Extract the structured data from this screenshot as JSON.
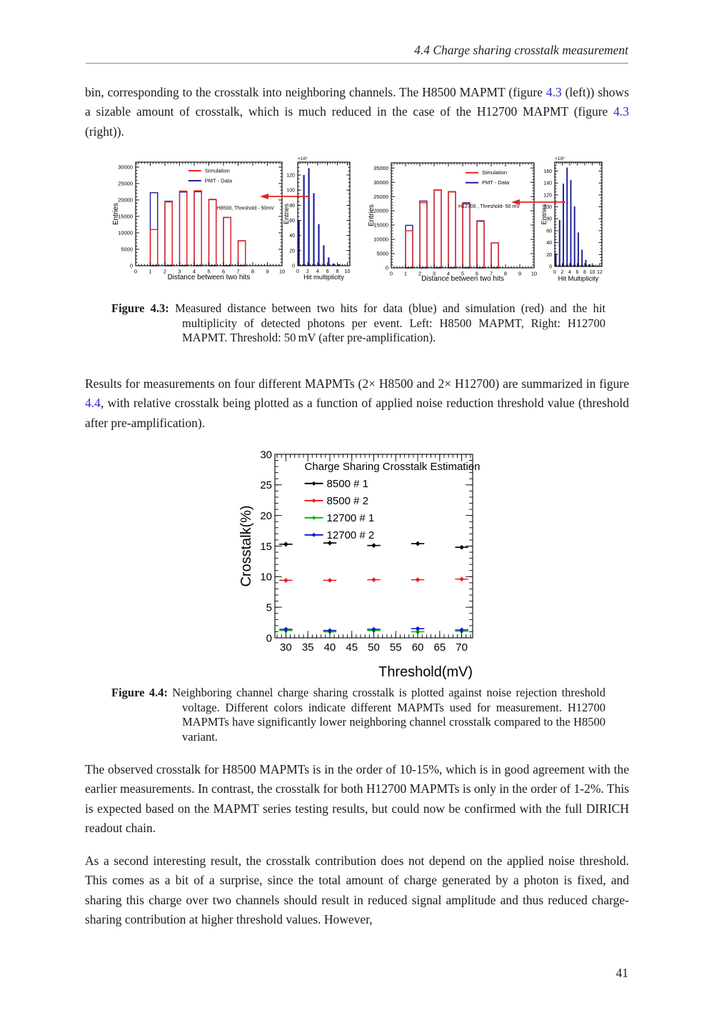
{
  "header": {
    "text": "4.4 Charge sharing crosstalk measurement"
  },
  "page_number": "41",
  "colors": {
    "link": "#2a2ac8",
    "arrow": "#e02520"
  },
  "paragraphs": {
    "p1": {
      "pre": "bin, corresponding to the crosstalk into neighboring channels. The H8500 MAPMT (figure ",
      "link1": "4.3",
      "mid": " (left)) shows a sizable amount of crosstalk, which is much reduced in the case of the H12700 MAPMT (figure ",
      "link2": "4.3",
      "post": " (right))."
    },
    "p2": {
      "pre": "Results for measurements on four different MAPMTs (2× H8500 and 2× H12700) are summarized in figure ",
      "link": "4.4",
      "post": ", with relative crosstalk being plotted as a function of applied noise reduction threshold value (threshold after pre-amplification)."
    },
    "p3": "The observed crosstalk for H8500 MAPMTs is in the order of 10-15%, which is in good agreement with the earlier measurements. In contrast, the crosstalk for both H12700 MAPMTs is only in the order of 1-2%. This is expected based on the MAPMT series testing results, but could now be confirmed with the full DIRICH readout chain.",
    "p4": "As a second interesting result, the crosstalk contribution does not depend on the applied noise threshold. This comes as a bit of a surprise, since the total amount of charge generated by a photon is fixed, and sharing this charge over two channels should result in reduced signal amplitude and thus reduced charge-sharing contribution at higher threshold values. However,"
  },
  "captions": {
    "fig43": {
      "label": "Figure 4.3:",
      "text": "Measured distance between two hits for data (blue) and simulation (red) and the hit multiplicity of detected photons per event. Left: H8500 MAPMT, Right: H12700 MAPMT. Threshold: 50 mV (after pre-amplification)."
    },
    "fig44": {
      "label": "Figure 4.4:",
      "text": "Neighboring channel charge sharing crosstalk is plotted against noise rejection threshold voltage. Different colors indicate different MAPMTs used for measurement. H12700 MAPMTs have significantly lower neighboring channel crosstalk compared to the H8500 variant."
    }
  },
  "chart_data": {
    "h8500_distance": {
      "type": "bar",
      "xlabel": "Distance between two hits",
      "ylabel": "Entries",
      "xlim": [
        0,
        10
      ],
      "ylim": [
        0,
        31500
      ],
      "xticks": [
        0,
        1,
        2,
        3,
        4,
        5,
        6,
        7,
        8,
        9,
        10
      ],
      "yticks": [
        0,
        5000,
        10000,
        15000,
        20000,
        25000,
        30000
      ],
      "xminor": 0.2,
      "yminor": 1000,
      "bar_offset": 0,
      "bar_width": 0.5,
      "legend": {
        "fx": 0.36,
        "fy": 0.1,
        "dy": 14,
        "line": 18,
        "fs": 7.5,
        "items": [
          {
            "label": "Simulation",
            "color": "#e8201c"
          },
          {
            "label": "PMT - Data",
            "color": "#1d1d9e"
          }
        ]
      },
      "annotation": {
        "text": "H8500, Threshold - 50mV",
        "fx": 0.555,
        "fy": 0.46,
        "fs": 7
      },
      "series": [
        {
          "name": "PMT - Data",
          "style": "outline",
          "color": "#1d1d9e",
          "x": [
            1,
            2,
            3,
            4,
            5,
            6,
            7
          ],
          "y": [
            22200,
            19600,
            22400,
            22500,
            20100,
            14650,
            7550
          ]
        },
        {
          "name": "Simulation",
          "style": "outline",
          "color": "#e8201c",
          "x": [
            1,
            2,
            3,
            4,
            5,
            6,
            7
          ],
          "y": [
            11000,
            19400,
            22700,
            22800,
            20200,
            14700,
            7600
          ]
        }
      ]
    },
    "h8500_multiplicity": {
      "type": "bar",
      "xlabel": "Hit multiplicity",
      "ylabel": "Entries",
      "exponent": "×10³",
      "xlim": [
        0,
        10.5
      ],
      "ylim": [
        0,
        137
      ],
      "xticks": [
        0,
        2,
        4,
        6,
        8,
        10
      ],
      "yticks": [
        0,
        20,
        40,
        60,
        80,
        100,
        120
      ],
      "xminor": 0.5,
      "yminor": 5,
      "bar_offset": 0.08,
      "bar_width": 0.32,
      "series": [
        {
          "name": "PMT - Data",
          "style": "fill",
          "color": "#22229a",
          "x": [
            0,
            1,
            2,
            3,
            4,
            5,
            6,
            7,
            8
          ],
          "y": [
            60,
            120,
            129,
            96,
            55,
            27,
            11,
            3,
            2
          ]
        }
      ]
    },
    "h12700_distance": {
      "type": "bar",
      "xlabel": "Distance between two hits",
      "ylabel": "Entries",
      "xlim": [
        0,
        10
      ],
      "ylim": [
        0,
        36800
      ],
      "xticks": [
        0,
        1,
        2,
        3,
        4,
        5,
        6,
        7,
        8,
        9,
        10
      ],
      "yticks": [
        0,
        5000,
        10000,
        15000,
        20000,
        25000,
        30000,
        35000
      ],
      "xminor": 0.2,
      "yminor": 1000,
      "bar_offset": 0,
      "bar_width": 0.5,
      "legend": {
        "fx": 0.52,
        "fy": 0.11,
        "dy": 14,
        "line": 18,
        "fs": 7.5,
        "items": [
          {
            "label": "Simulation",
            "color": "#e8201c"
          },
          {
            "label": "PMT - Data",
            "color": "#1d1d9e"
          }
        ]
      },
      "annotation": {
        "text": "H12700 , Threshold- 50 mV",
        "fx": 0.47,
        "fy": 0.43,
        "fs": 7
      },
      "series": [
        {
          "name": "PMT - Data",
          "style": "outline",
          "color": "#1d1d9e",
          "x": [
            1,
            2,
            3,
            4,
            5,
            6,
            7
          ],
          "y": [
            14900,
            23400,
            27300,
            26700,
            22800,
            16500,
            8750
          ]
        },
        {
          "name": "Simulation",
          "style": "outline",
          "color": "#e8201c",
          "x": [
            1,
            2,
            3,
            4,
            5,
            6,
            7
          ],
          "y": [
            13000,
            22800,
            27200,
            26600,
            22500,
            16300,
            8700
          ]
        }
      ]
    },
    "h12700_multiplicity": {
      "type": "bar",
      "xlabel": "Hit Multiplicity",
      "ylabel": "Entries",
      "exponent": "×10³",
      "xlim": [
        0,
        12.6
      ],
      "ylim": [
        0,
        175
      ],
      "xticks": [
        0,
        2,
        4,
        6,
        8,
        10,
        12
      ],
      "yticks": [
        0,
        20,
        40,
        60,
        80,
        100,
        120,
        140,
        160
      ],
      "xminor": 0.5,
      "yminor": 5,
      "bar_offset": 0.1,
      "bar_width": 0.38,
      "series": [
        {
          "name": "PMT - Data",
          "style": "fill",
          "color": "#22229a",
          "x": [
            0,
            1,
            2,
            3,
            4,
            5,
            6,
            7,
            8,
            9,
            10,
            11
          ],
          "y": [
            22,
            78,
            139,
            166,
            145,
            101,
            57,
            28,
            11,
            4,
            2,
            1
          ]
        }
      ]
    },
    "crosstalk_vs_threshold": {
      "type": "scatter",
      "xlabel": "Threshold(mV)",
      "xlabel_align": "end",
      "ylabel": "Crosstalk(%)",
      "xlim": [
        27.5,
        72.5
      ],
      "ylim": [
        0,
        30
      ],
      "xticks": [
        30,
        35,
        40,
        45,
        50,
        55,
        60,
        65,
        70
      ],
      "yticks": [
        0,
        5,
        10,
        15,
        20,
        25,
        30
      ],
      "xminor": 1,
      "yminor": 1,
      "xerr": 1.5,
      "yerr": 0.25,
      "legend": {
        "fx": 0.15,
        "fy": 0.085,
        "dy": 24,
        "line": 26,
        "fs": 15,
        "marker": true,
        "title": "Charge Sharing Crosstalk Estimation",
        "items": [
          {
            "label": "8500 # 1",
            "color": "#000000"
          },
          {
            "label": "8500 # 2",
            "color": "#e8201c"
          },
          {
            "label": "12700 # 1",
            "color": "#00c000"
          },
          {
            "label": "12700 # 2",
            "color": "#1717d2"
          }
        ]
      },
      "series": [
        {
          "name": "8500 # 1",
          "style": "points",
          "color": "#000000",
          "x": [
            30,
            40,
            50,
            60,
            70
          ],
          "y": [
            15.3,
            15.5,
            15.1,
            15.4,
            14.8
          ]
        },
        {
          "name": "8500 # 2",
          "style": "points",
          "color": "#e8201c",
          "x": [
            30,
            40,
            50,
            60,
            70
          ],
          "y": [
            9.4,
            9.4,
            9.5,
            9.5,
            9.6
          ]
        },
        {
          "name": "12700 # 1",
          "style": "points",
          "color": "#00c000",
          "x": [
            30,
            40,
            50,
            60,
            70
          ],
          "y": [
            1.2,
            1.0,
            1.2,
            1.0,
            1.1
          ]
        },
        {
          "name": "12700 # 2",
          "style": "points",
          "color": "#1717d2",
          "x": [
            30,
            40,
            50,
            60,
            70
          ],
          "y": [
            1.4,
            1.2,
            1.4,
            1.5,
            1.3
          ]
        }
      ]
    }
  }
}
